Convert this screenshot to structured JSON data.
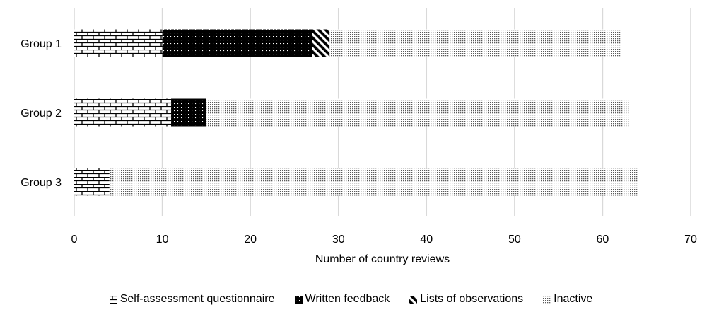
{
  "chart_data": {
    "type": "bar",
    "orientation": "horizontal",
    "stacked": true,
    "title": "",
    "categories": [
      "Group 1",
      "Group 2",
      "Group 3"
    ],
    "series": [
      {
        "name": "Self-assessment questionnaire",
        "pattern": "brick",
        "values": [
          10,
          11,
          4
        ]
      },
      {
        "name": "Written feedback",
        "pattern": "dots-on-black",
        "values": [
          17,
          4,
          0
        ]
      },
      {
        "name": "Lists of observations",
        "pattern": "diagonal-stripes",
        "values": [
          2,
          0,
          0
        ]
      },
      {
        "name": "Inactive",
        "pattern": "fine-dots",
        "values": [
          33,
          48,
          60
        ]
      }
    ],
    "xlabel": "Number of country reviews",
    "ylabel": "",
    "xlim": [
      0,
      70
    ],
    "xticks": [
      0,
      10,
      20,
      30,
      40,
      50,
      60,
      70
    ],
    "grid": "vertical",
    "legend_position": "bottom",
    "colors": {
      "ink": "#000000",
      "grid": "#d9d9d9",
      "background": "#ffffff"
    }
  }
}
